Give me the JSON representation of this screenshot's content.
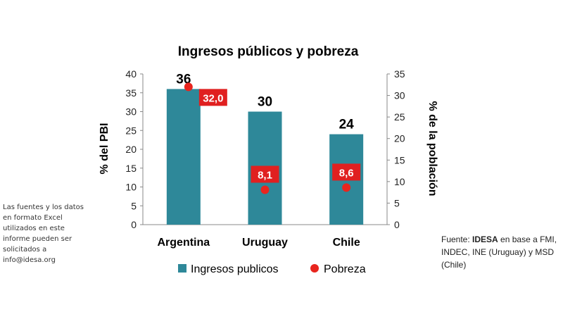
{
  "chart_data": {
    "type": "bar",
    "title": "Ingresos públicos y pobreza",
    "categories": [
      "Argentina",
      "Uruguay",
      "Chile"
    ],
    "series": [
      {
        "name": "Ingresos publicos",
        "type": "bar",
        "axis": "left",
        "values": [
          36,
          30,
          24
        ],
        "value_labels": [
          "36",
          "30",
          "24"
        ],
        "color": "#2e8899"
      },
      {
        "name": "Pobreza",
        "type": "scatter",
        "axis": "right",
        "values": [
          32.0,
          8.1,
          8.6
        ],
        "value_labels": [
          "32,0",
          "8,1",
          "8,6"
        ],
        "color": "#e8251e"
      }
    ],
    "ylabel": "% del PBI",
    "ylim": [
      0,
      40
    ],
    "yticks": [
      "0",
      "5",
      "10",
      "15",
      "20",
      "25",
      "30",
      "35",
      "40"
    ],
    "y2label": "% de la población",
    "y2lim": [
      0,
      35
    ],
    "y2ticks": [
      "0",
      "5",
      "10",
      "15",
      "20",
      "25",
      "30",
      "35"
    ],
    "grid": false,
    "legend": "bottom"
  },
  "side_note": "Las fuentes y los datos en formato Excel utilizados en este informe pueden ser solicitados a info@idesa.org",
  "source": {
    "prefix": "Fuente: ",
    "org": "IDESA",
    "suffix": " en base a FMI, INDEC, INE (Uruguay) y MSD (Chile)"
  }
}
